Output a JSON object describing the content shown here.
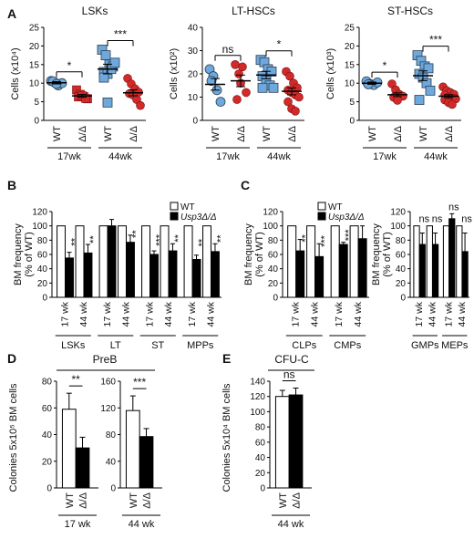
{
  "colors": {
    "wt_blue": "#6fa8dc",
    "ko_red": "#d22a2a",
    "stroke_dark": "#2b3e52",
    "bar_ko": "#000000",
    "bar_wt": "#ffffff"
  },
  "chart_data": [
    {
      "panel": "A",
      "type": "scatter",
      "title": "LSKs",
      "ylabel": "Cells (x10⁴)",
      "ylim": [
        0,
        25
      ],
      "yticks": [
        0,
        5,
        10,
        15,
        20,
        25
      ],
      "groups": [
        {
          "label": "WT",
          "age": "17wk",
          "series": "WT",
          "points": [
            10.6,
            10.2,
            9.4,
            10.0,
            10.5,
            9.8
          ],
          "mean": 10.1,
          "sem": 0.3
        },
        {
          "label": "Δ/Δ",
          "age": "17wk",
          "series": "Δ/Δ",
          "points": [
            8.2,
            7.0,
            6.4,
            5.8,
            6.3,
            6.6,
            5.9
          ],
          "mean": 6.6,
          "sem": 0.4
        },
        {
          "label": "WT",
          "age": "44wk",
          "series": "WT",
          "points": [
            19.0,
            17.5,
            15.0,
            14.5,
            13.0,
            12.5,
            13.8,
            15.5,
            11.5,
            4.8
          ],
          "mean": 13.8,
          "sem": 1.3
        },
        {
          "label": "Δ/Δ",
          "age": "44wk",
          "series": "Δ/Δ",
          "points": [
            11.3,
            9.8,
            8.5,
            7.6,
            7.2,
            6.8,
            5.6,
            4.0
          ],
          "mean": 7.4,
          "sem": 0.8
        }
      ],
      "comparisons": [
        {
          "groups": [
            0,
            1
          ],
          "label": "*"
        },
        {
          "groups": [
            2,
            3
          ],
          "label": "***"
        }
      ]
    },
    {
      "panel": "A",
      "type": "scatter",
      "title": "LT-HSCs",
      "ylabel": "Cells (x10²)",
      "ylim": [
        0,
        40
      ],
      "yticks": [
        0,
        10,
        20,
        30,
        40
      ],
      "groups": [
        {
          "label": "WT",
          "age": "17wk",
          "series": "WT",
          "points": [
            22,
            19,
            13,
            8,
            17
          ],
          "mean": 15.5,
          "sem": 2.5
        },
        {
          "label": "Δ/Δ",
          "age": "17wk",
          "series": "Δ/Δ",
          "points": [
            24,
            20,
            23,
            12,
            9,
            16
          ],
          "mean": 17.0,
          "sem": 2.5
        },
        {
          "label": "WT",
          "age": "44wk",
          "series": "WT",
          "points": [
            26,
            25,
            22,
            21,
            19,
            17,
            15,
            14,
            14
          ],
          "mean": 19.5,
          "sem": 1.6
        },
        {
          "label": "Δ/Δ",
          "age": "44wk",
          "series": "Δ/Δ",
          "points": [
            21,
            19,
            16,
            14,
            13,
            12,
            11,
            10,
            8,
            5,
            4
          ],
          "mean": 12.5,
          "sem": 1.5
        }
      ],
      "comparisons": [
        {
          "groups": [
            0,
            1
          ],
          "label": "ns"
        },
        {
          "groups": [
            2,
            3
          ],
          "label": "*"
        }
      ]
    },
    {
      "panel": "A",
      "type": "scatter",
      "title": "ST-HSCs",
      "ylabel": "Cells (x10³)",
      "ylim": [
        0,
        25
      ],
      "yticks": [
        0,
        5,
        10,
        15,
        20,
        25
      ],
      "groups": [
        {
          "label": "WT",
          "age": "17wk",
          "series": "WT",
          "points": [
            10.5,
            9.8,
            9.5,
            10.2,
            9.7
          ],
          "mean": 10.0,
          "sem": 0.3
        },
        {
          "label": "Δ/Δ",
          "age": "17wk",
          "series": "Δ/Δ",
          "points": [
            9.8,
            8.2,
            7.0,
            6.5,
            6.2,
            5.4
          ],
          "mean": 6.9,
          "sem": 0.5
        },
        {
          "label": "WT",
          "age": "44wk",
          "series": "WT",
          "points": [
            17.5,
            16.0,
            14.5,
            14.0,
            12.5,
            11.5,
            10.0,
            8.0,
            5.5
          ],
          "mean": 12.0,
          "sem": 1.3
        },
        {
          "label": "Δ/Δ",
          "age": "44wk",
          "series": "Δ/Δ",
          "points": [
            9.0,
            8.0,
            7.5,
            7.0,
            6.8,
            6.2,
            6.0,
            5.8,
            5.5,
            4.8,
            4.3
          ],
          "mean": 6.5,
          "sem": 0.4
        }
      ],
      "comparisons": [
        {
          "groups": [
            0,
            1
          ],
          "label": "*"
        },
        {
          "groups": [
            2,
            3
          ],
          "label": "***"
        }
      ]
    },
    {
      "panel": "B",
      "type": "bar",
      "ylabel": "BM frequency (% of WT)",
      "ylim": [
        0,
        120
      ],
      "yticks": [
        0,
        20,
        40,
        60,
        80,
        100,
        120
      ],
      "legend": [
        "WT",
        "Usp3Δ/Δ"
      ],
      "groups": [
        {
          "label": "LSKs",
          "pairs": [
            {
              "age": "17 wk",
              "wt": 100,
              "ko": 55,
              "err": 8,
              "sig": "**"
            },
            {
              "age": "44 wk",
              "wt": 100,
              "ko": 62,
              "err": 12,
              "sig": "**"
            }
          ]
        },
        {
          "label": "LT",
          "pairs": [
            {
              "age": "17 wk",
              "wt": 100,
              "ko": 100,
              "err": 9,
              "sig": ""
            },
            {
              "age": "44 wk",
              "wt": 100,
              "ko": 77,
              "err": 10,
              "sig": "**"
            }
          ]
        },
        {
          "label": "ST",
          "pairs": [
            {
              "age": "17 wk",
              "wt": 100,
              "ko": 60,
              "err": 5,
              "sig": "***"
            },
            {
              "age": "44 wk",
              "wt": 100,
              "ko": 65,
              "err": 10,
              "sig": "**"
            }
          ]
        },
        {
          "label": "MPPs",
          "pairs": [
            {
              "age": "17 wk",
              "wt": 100,
              "ko": 53,
              "err": 6,
              "sig": "**"
            },
            {
              "age": "44 wk",
              "wt": 100,
              "ko": 64,
              "err": 11,
              "sig": "**"
            }
          ]
        }
      ]
    },
    {
      "panel": "C",
      "type": "bar",
      "ylabel": "BM frequency (% of WT)",
      "ylim": [
        0,
        120
      ],
      "yticks": [
        0,
        20,
        40,
        60,
        80,
        100,
        120
      ],
      "legend": [
        "WT",
        "Usp3Δ/Δ"
      ],
      "groups": [
        {
          "label": "CLPs",
          "pairs": [
            {
              "age": "17 wk",
              "wt": 100,
              "ko": 65,
              "err": 16,
              "sig": "**"
            },
            {
              "age": "44 wk",
              "wt": 100,
              "ko": 57,
              "err": 18,
              "sig": "***"
            }
          ]
        },
        {
          "label": "CMPs",
          "pairs": [
            {
              "age": "17 wk",
              "wt": 100,
              "ko": 74,
              "err": 3,
              "sig": "***"
            },
            {
              "age": "44 wk",
              "wt": 100,
              "ko": 82,
              "err": 18,
              "sig": ""
            }
          ]
        }
      ]
    },
    {
      "panel": "C",
      "type": "bar",
      "ylabel": "BM frequency (% of WT)",
      "ylim": [
        0,
        120
      ],
      "yticks": [
        0,
        20,
        40,
        60,
        80,
        100,
        120
      ],
      "groups": [
        {
          "label": "GMPs",
          "pairs": [
            {
              "age": "17 wk",
              "wt": 100,
              "ko": 74,
              "err": 16,
              "sig": "ns"
            },
            {
              "age": "44 wk",
              "wt": 100,
              "ko": 74,
              "err": 16,
              "sig": "ns"
            }
          ]
        },
        {
          "label": "MEPs",
          "pairs": [
            {
              "age": "17 wk",
              "wt": 100,
              "ko": 110,
              "err": 7,
              "sig": "ns"
            },
            {
              "age": "44 wk",
              "wt": 100,
              "ko": 64,
              "err": 26,
              "sig": "ns"
            }
          ]
        }
      ]
    },
    {
      "panel": "D",
      "type": "bar",
      "title": "PreB",
      "ylabel": "Colonies 5x10⁵ BM cells",
      "subplots": [
        {
          "age": "17 wk",
          "ylim": [
            0,
            80
          ],
          "yticks": [
            0,
            20,
            40,
            60,
            80
          ],
          "categories": [
            "WT",
            "Δ/Δ"
          ],
          "values": [
            59,
            30
          ],
          "err": [
            12,
            8
          ],
          "sig": "**"
        },
        {
          "age": "44 wk",
          "ylim": [
            0,
            160
          ],
          "yticks": [
            0,
            40,
            80,
            120,
            160
          ],
          "categories": [
            "WT",
            "Δ/Δ"
          ],
          "values": [
            116,
            77
          ],
          "err": [
            22,
            12
          ],
          "sig": "***"
        }
      ]
    },
    {
      "panel": "E",
      "type": "bar",
      "title": "CFU-C",
      "ylabel": "Colonies 5x10⁴ BM cells",
      "subplots": [
        {
          "age": "44 wk",
          "ylim": [
            0,
            140
          ],
          "yticks": [
            0,
            20,
            40,
            60,
            80,
            100,
            120,
            140
          ],
          "categories": [
            "WT",
            "Δ/Δ"
          ],
          "values": [
            120,
            122
          ],
          "err": [
            8,
            9
          ],
          "sig": "ns"
        }
      ]
    }
  ]
}
